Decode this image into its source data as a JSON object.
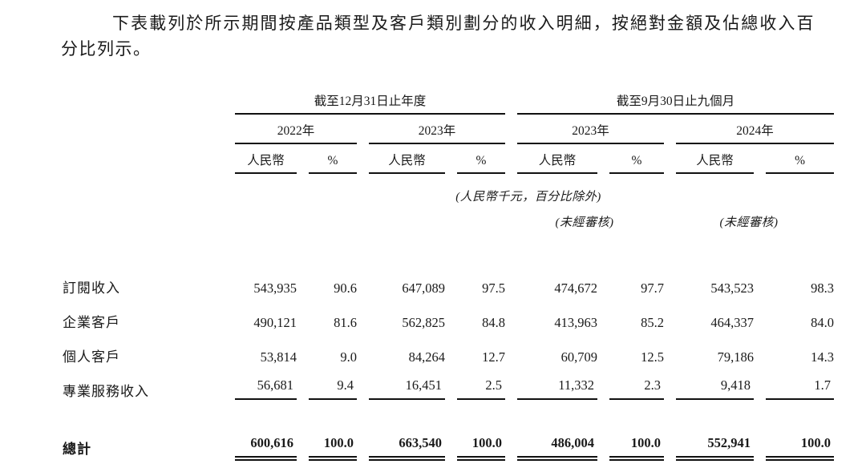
{
  "intro": {
    "text": "下表載列於所示期間按產品類型及客戶類別劃分的收入明細，按絕對金額及佔總收入百分比列示。"
  },
  "table": {
    "groups": [
      {
        "label": "截至12月31日止年度",
        "years": [
          "2022年",
          "2023年"
        ]
      },
      {
        "label": "截至9月30日止九個月",
        "years": [
          "2023年",
          "2024年"
        ]
      }
    ],
    "col_headers": {
      "currency": "人民幣",
      "percent": "%"
    },
    "unit_note": "(人民幣千元，百分比除外)",
    "unaudited_note": "(未經審核)",
    "rows": [
      {
        "label": "訂閱收入",
        "values": [
          "543,935",
          "90.6",
          "647,089",
          "97.5",
          "474,672",
          "97.7",
          "543,523",
          "98.3"
        ]
      },
      {
        "label": "企業客戶",
        "values": [
          "490,121",
          "81.6",
          "562,825",
          "84.8",
          "413,963",
          "85.2",
          "464,337",
          "84.0"
        ]
      },
      {
        "label": "個人客戶",
        "values": [
          "53,814",
          "9.0",
          "84,264",
          "12.7",
          "60,709",
          "12.5",
          "79,186",
          "14.3"
        ]
      },
      {
        "label": "專業服務收入",
        "values": [
          "56,681",
          "9.4",
          "16,451",
          "2.5",
          "11,332",
          "2.3",
          "9,418",
          "1.7"
        ]
      }
    ],
    "total": {
      "label": "總計",
      "values": [
        "600,616",
        "100.0",
        "663,540",
        "100.0",
        "486,004",
        "100.0",
        "552,941",
        "100.0"
      ]
    }
  }
}
